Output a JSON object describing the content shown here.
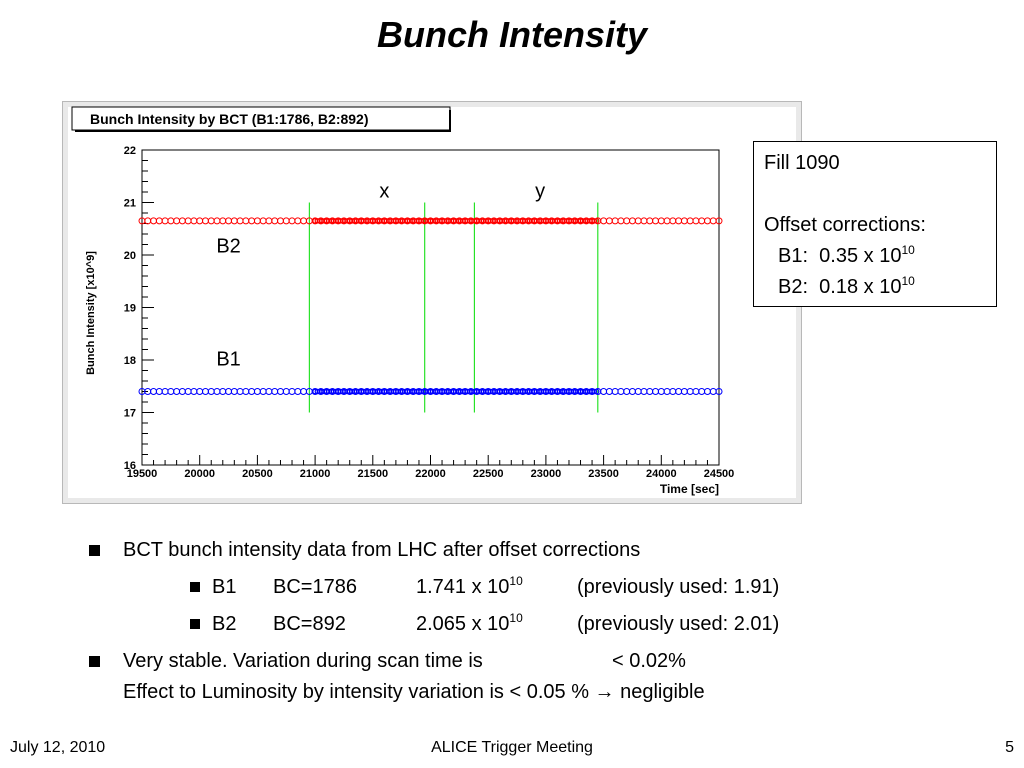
{
  "slide": {
    "title": "Bunch Intensity",
    "footer_left": "July 12, 2010",
    "footer_center": "ALICE Trigger Meeting",
    "footer_right": "5"
  },
  "info_box": {
    "fill": "Fill 1090",
    "heading": "Offset corrections:",
    "b1_label": "B1:",
    "b1_value": "0.35 x 10",
    "b1_exp": "10",
    "b2_label": "B2:",
    "b2_value": "0.18 x 10",
    "b2_exp": "10"
  },
  "bullets": {
    "item1": "BCT bunch intensity data from LHC after offset corrections",
    "sub1": {
      "beam": "B1",
      "bc": "BC=1786",
      "value": "1.741 x 10",
      "exp": "10",
      "prev": "(previously used: 1.91)"
    },
    "sub2": {
      "beam": "B2",
      "bc": "BC=892",
      "value": "2.065 x 10",
      "exp": "10",
      "prev": "(previously used: 2.01)"
    },
    "item2_line1": "Very stable. Variation during scan time is",
    "item2_value": "< 0.02%",
    "item2_line2_pre": "Effect to Luminosity by intensity variation is < 0.05 %",
    "item2_arrow": "→",
    "item2_line2_post": "negligible"
  },
  "chart_data": {
    "type": "scatter",
    "title": "Bunch Intensity by BCT (B1:1786, B2:892)",
    "xlabel": "Time [sec]",
    "ylabel": "Bunch Intensity [x10^9]",
    "xlim": [
      19500,
      24500
    ],
    "ylim": [
      16,
      22
    ],
    "x_ticks": [
      19500,
      20000,
      20500,
      21000,
      21500,
      22000,
      22500,
      23000,
      23500,
      24000,
      24500
    ],
    "y_ticks": [
      16,
      17,
      18,
      19,
      20,
      21,
      22
    ],
    "grid": false,
    "series": [
      {
        "name": "B2",
        "color": "#ff0000",
        "marker": "open-circle",
        "x_start": 19500,
        "x_end": 24500,
        "value": 20.65,
        "dense_x_start": 21000,
        "dense_x_end": 23450
      },
      {
        "name": "B1",
        "color": "#0000ff",
        "marker": "open-circle",
        "x_start": 19500,
        "x_end": 24500,
        "value": 17.4,
        "dense_x_start": 21000,
        "dense_x_end": 23450
      }
    ],
    "vertical_lines": {
      "color": "#00dd00",
      "x": [
        20950,
        21950,
        22380,
        23450
      ],
      "y_range": [
        17,
        21
      ]
    },
    "annotations": [
      {
        "text": "x",
        "x": 21600,
        "y": 21.1
      },
      {
        "text": "y",
        "x": 22950,
        "y": 21.1
      },
      {
        "text": "B2",
        "x": 20250,
        "y": 20.05
      },
      {
        "text": "B1",
        "x": 20250,
        "y": 17.9
      }
    ]
  }
}
